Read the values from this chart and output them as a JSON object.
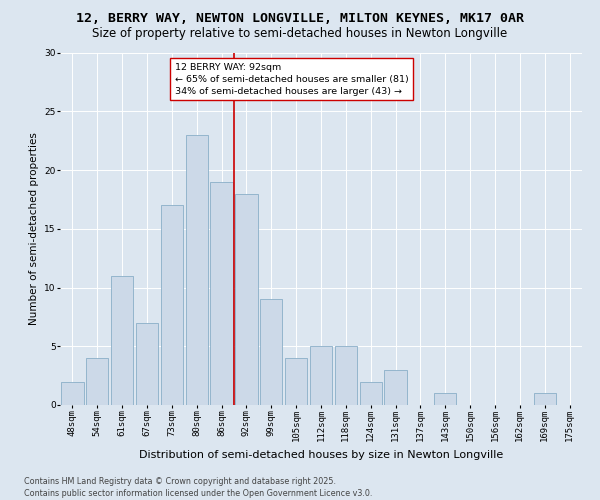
{
  "title": "12, BERRY WAY, NEWTON LONGVILLE, MILTON KEYNES, MK17 0AR",
  "subtitle": "Size of property relative to semi-detached houses in Newton Longville",
  "xlabel": "Distribution of semi-detached houses by size in Newton Longville",
  "ylabel": "Number of semi-detached properties",
  "categories": [
    "48sqm",
    "54sqm",
    "61sqm",
    "67sqm",
    "73sqm",
    "80sqm",
    "86sqm",
    "92sqm",
    "99sqm",
    "105sqm",
    "112sqm",
    "118sqm",
    "124sqm",
    "131sqm",
    "137sqm",
    "143sqm",
    "150sqm",
    "156sqm",
    "162sqm",
    "169sqm",
    "175sqm"
  ],
  "values": [
    2,
    4,
    11,
    7,
    17,
    23,
    19,
    18,
    9,
    4,
    5,
    5,
    2,
    3,
    0,
    1,
    0,
    0,
    0,
    1,
    0
  ],
  "bar_color": "#ccd9e8",
  "bar_edge_color": "#8aaec8",
  "reference_line_index": 7,
  "reference_line_color": "#cc0000",
  "annotation_text": "12 BERRY WAY: 92sqm\n← 65% of semi-detached houses are smaller (81)\n34% of semi-detached houses are larger (43) →",
  "annotation_box_facecolor": "#ffffff",
  "annotation_box_edgecolor": "#cc0000",
  "ylim": [
    0,
    30
  ],
  "yticks": [
    0,
    5,
    10,
    15,
    20,
    25,
    30
  ],
  "background_color": "#dce6f0",
  "plot_background_color": "#dce6f0",
  "footer_line1": "Contains HM Land Registry data © Crown copyright and database right 2025.",
  "footer_line2": "Contains public sector information licensed under the Open Government Licence v3.0.",
  "title_fontsize": 9.5,
  "subtitle_fontsize": 8.5,
  "xlabel_fontsize": 8,
  "ylabel_fontsize": 7.5,
  "tick_fontsize": 6.5,
  "annotation_fontsize": 6.8,
  "footer_fontsize": 5.8,
  "grid_color": "#ffffff"
}
